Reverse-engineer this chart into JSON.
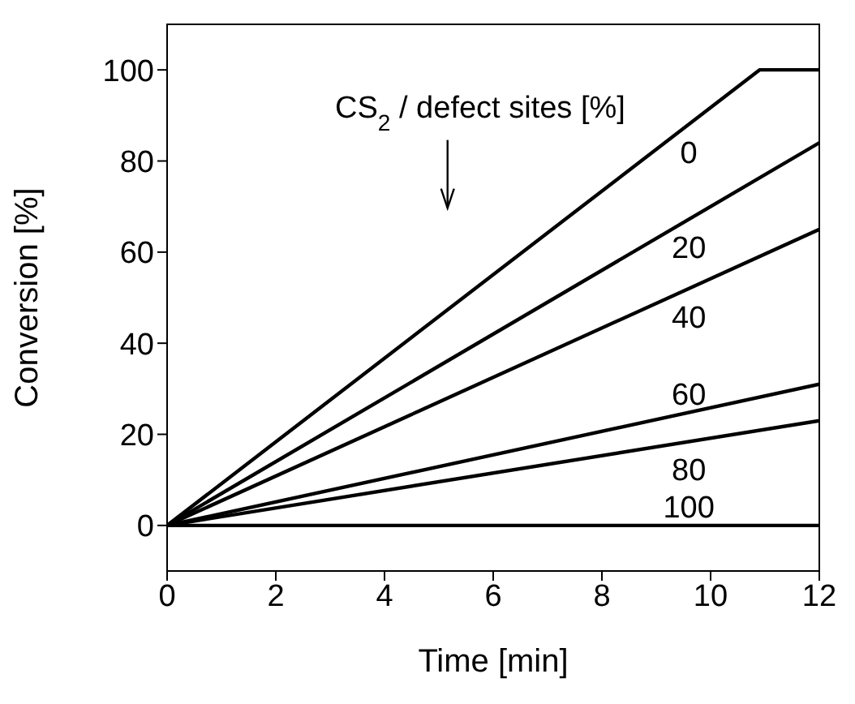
{
  "chart_data": {
    "type": "line",
    "xlabel": "Time [min]",
    "ylabel": "Conversion [%]",
    "legend_title": "CS$_{2}$ / defect sites [%]",
    "xlim": [
      0,
      12
    ],
    "xticks": [
      0,
      2,
      4,
      6,
      8,
      10,
      12
    ],
    "ylim": [
      -10,
      110
    ],
    "yticks": [
      0,
      20,
      40,
      60,
      80,
      100
    ],
    "legend": false,
    "marker": "none",
    "line_style": "solid",
    "series": [
      {
        "name": "0",
        "color": "#000000",
        "x": [
          0,
          10.9,
          12
        ],
        "values": [
          0,
          100,
          100
        ]
      },
      {
        "name": "20",
        "color": "#000000",
        "x": [
          0,
          12
        ],
        "values": [
          0,
          84
        ]
      },
      {
        "name": "40",
        "color": "#000000",
        "x": [
          0,
          12
        ],
        "values": [
          0,
          65
        ]
      },
      {
        "name": "60",
        "color": "#000000",
        "x": [
          0,
          12
        ],
        "values": [
          0,
          31
        ]
      },
      {
        "name": "80",
        "color": "#000000",
        "x": [
          0,
          12
        ],
        "values": [
          0,
          23
        ]
      },
      {
        "name": "100",
        "color": "#000000",
        "x": [
          0,
          12
        ],
        "values": [
          0,
          0
        ]
      }
    ]
  }
}
